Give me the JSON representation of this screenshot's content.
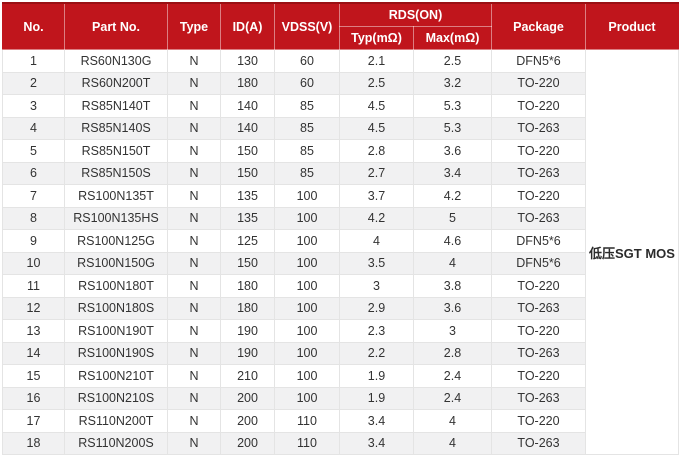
{
  "table": {
    "columns": {
      "no": "No.",
      "part_no": "Part No.",
      "type": "Type",
      "id_a": "ID(A)",
      "vdss": "VDSS(V)",
      "rds_on": "RDS(ON)",
      "typ": "Typ(mΩ)",
      "max": "Max(mΩ)",
      "package": "Package",
      "product": "Product"
    },
    "product_label": "低压SGT MOS",
    "rows": [
      [
        "1",
        "RS60N130G",
        "N",
        "130",
        "60",
        "2.1",
        "2.5",
        "DFN5*6"
      ],
      [
        "2",
        "RS60N200T",
        "N",
        "180",
        "60",
        "2.5",
        "3.2",
        "TO-220"
      ],
      [
        "3",
        "RS85N140T",
        "N",
        "140",
        "85",
        "4.5",
        "5.3",
        "TO-220"
      ],
      [
        "4",
        "RS85N140S",
        "N",
        "140",
        "85",
        "4.5",
        "5.3",
        "TO-263"
      ],
      [
        "5",
        "RS85N150T",
        "N",
        "150",
        "85",
        "2.8",
        "3.6",
        "TO-220"
      ],
      [
        "6",
        "RS85N150S",
        "N",
        "150",
        "85",
        "2.7",
        "3.4",
        "TO-263"
      ],
      [
        "7",
        "RS100N135T",
        "N",
        "135",
        "100",
        "3.7",
        "4.2",
        "TO-220"
      ],
      [
        "8",
        "RS100N135HS",
        "N",
        "135",
        "100",
        "4.2",
        "5",
        "TO-263"
      ],
      [
        "9",
        "RS100N125G",
        "N",
        "125",
        "100",
        "4",
        "4.6",
        "DFN5*6"
      ],
      [
        "10",
        "RS100N150G",
        "N",
        "150",
        "100",
        "3.5",
        "4",
        "DFN5*6"
      ],
      [
        "11",
        "RS100N180T",
        "N",
        "180",
        "100",
        "3",
        "3.8",
        "TO-220"
      ],
      [
        "12",
        "RS100N180S",
        "N",
        "180",
        "100",
        "2.9",
        "3.6",
        "TO-263"
      ],
      [
        "13",
        "RS100N190T",
        "N",
        "190",
        "100",
        "2.3",
        "3",
        "TO-220"
      ],
      [
        "14",
        "RS100N190S",
        "N",
        "190",
        "100",
        "2.2",
        "2.8",
        "TO-263"
      ],
      [
        "15",
        "RS100N210T",
        "N",
        "210",
        "100",
        "1.9",
        "2.4",
        "TO-220"
      ],
      [
        "16",
        "RS100N210S",
        "N",
        "200",
        "100",
        "1.9",
        "2.4",
        "TO-263"
      ],
      [
        "17",
        "RS110N200T",
        "N",
        "200",
        "110",
        "3.4",
        "4",
        "TO-220"
      ],
      [
        "18",
        "RS110N200S",
        "N",
        "200",
        "110",
        "3.4",
        "4",
        "TO-263"
      ]
    ],
    "colors": {
      "header_bg": "#c0151c",
      "header_top_border": "#9a1014",
      "header_text": "#ffffff",
      "row_stripe": "#f1f1f2",
      "cell_border": "#e4e4e4",
      "body_text": "#333333"
    }
  }
}
